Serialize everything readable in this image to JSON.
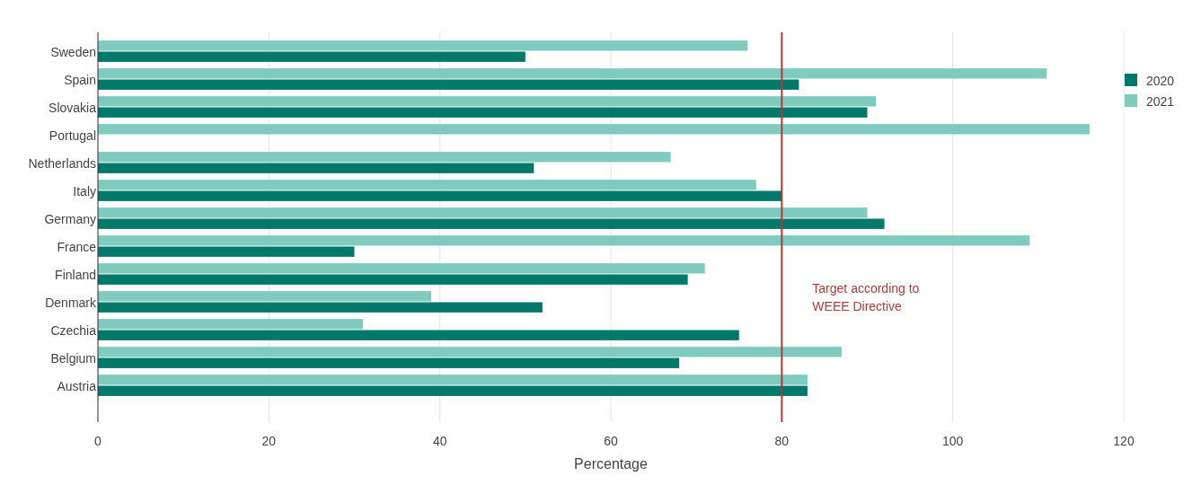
{
  "chart_data": {
    "type": "bar",
    "orientation": "horizontal",
    "categories": [
      "Sweden",
      "Spain",
      "Slovakia",
      "Portugal",
      "Netherlands",
      "Italy",
      "Germany",
      "France",
      "Finland",
      "Denmark",
      "Czechia",
      "Belgium",
      "Austria"
    ],
    "series": [
      {
        "name": "2020",
        "color": "#00796b",
        "values": [
          50,
          82,
          90,
          null,
          51,
          80,
          92,
          30,
          69,
          52,
          75,
          68,
          83
        ]
      },
      {
        "name": "2021",
        "color": "#80cbc0",
        "values": [
          76,
          111,
          91,
          116,
          67,
          77,
          90,
          109,
          71,
          39,
          31,
          87,
          83
        ]
      }
    ],
    "xlim": [
      0,
      120
    ],
    "xticks": [
      0,
      20,
      40,
      60,
      80,
      100,
      120
    ],
    "xlabel": "Percentage",
    "grid": "x",
    "legend": "right",
    "ref_lines": [
      {
        "axis": "x",
        "value": 80,
        "label": "Target according to WEEE Directive",
        "color": "#b03a3a"
      }
    ]
  }
}
